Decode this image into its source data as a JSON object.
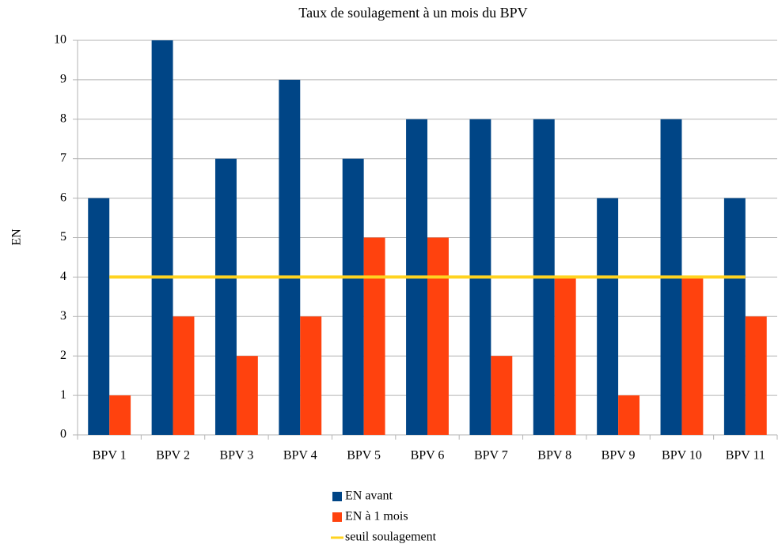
{
  "chart_data": {
    "type": "bar",
    "title": "Taux de soulagement à un mois du BPV",
    "y_label": "EN",
    "categories": [
      "BPV 1",
      "BPV 2",
      "BPV 3",
      "BPV 4",
      "BPV 5",
      "BPV 6",
      "BPV 7",
      "BPV 8",
      "BPV 9",
      "BPV 10",
      "BPV 11"
    ],
    "series": [
      {
        "name": "EN avant",
        "color": "#004586",
        "type": "bar",
        "values": [
          6,
          10,
          7,
          9,
          7,
          8,
          8,
          8,
          6,
          8,
          6
        ]
      },
      {
        "name": "EN à 1 mois",
        "color": "#ff420e",
        "type": "bar",
        "values": [
          1,
          3,
          2,
          3,
          5,
          5,
          2,
          4,
          1,
          4,
          3
        ]
      },
      {
        "name": "seuil soulagement",
        "color": "#ffd320",
        "type": "line",
        "values": [
          4,
          4,
          4,
          4,
          4,
          4,
          4,
          4,
          4,
          4,
          4
        ]
      }
    ],
    "ylim": [
      0,
      10
    ],
    "yticks": [
      0,
      1,
      2,
      3,
      4,
      5,
      6,
      7,
      8,
      9,
      10
    ],
    "grid": true,
    "legend": "bottom"
  }
}
